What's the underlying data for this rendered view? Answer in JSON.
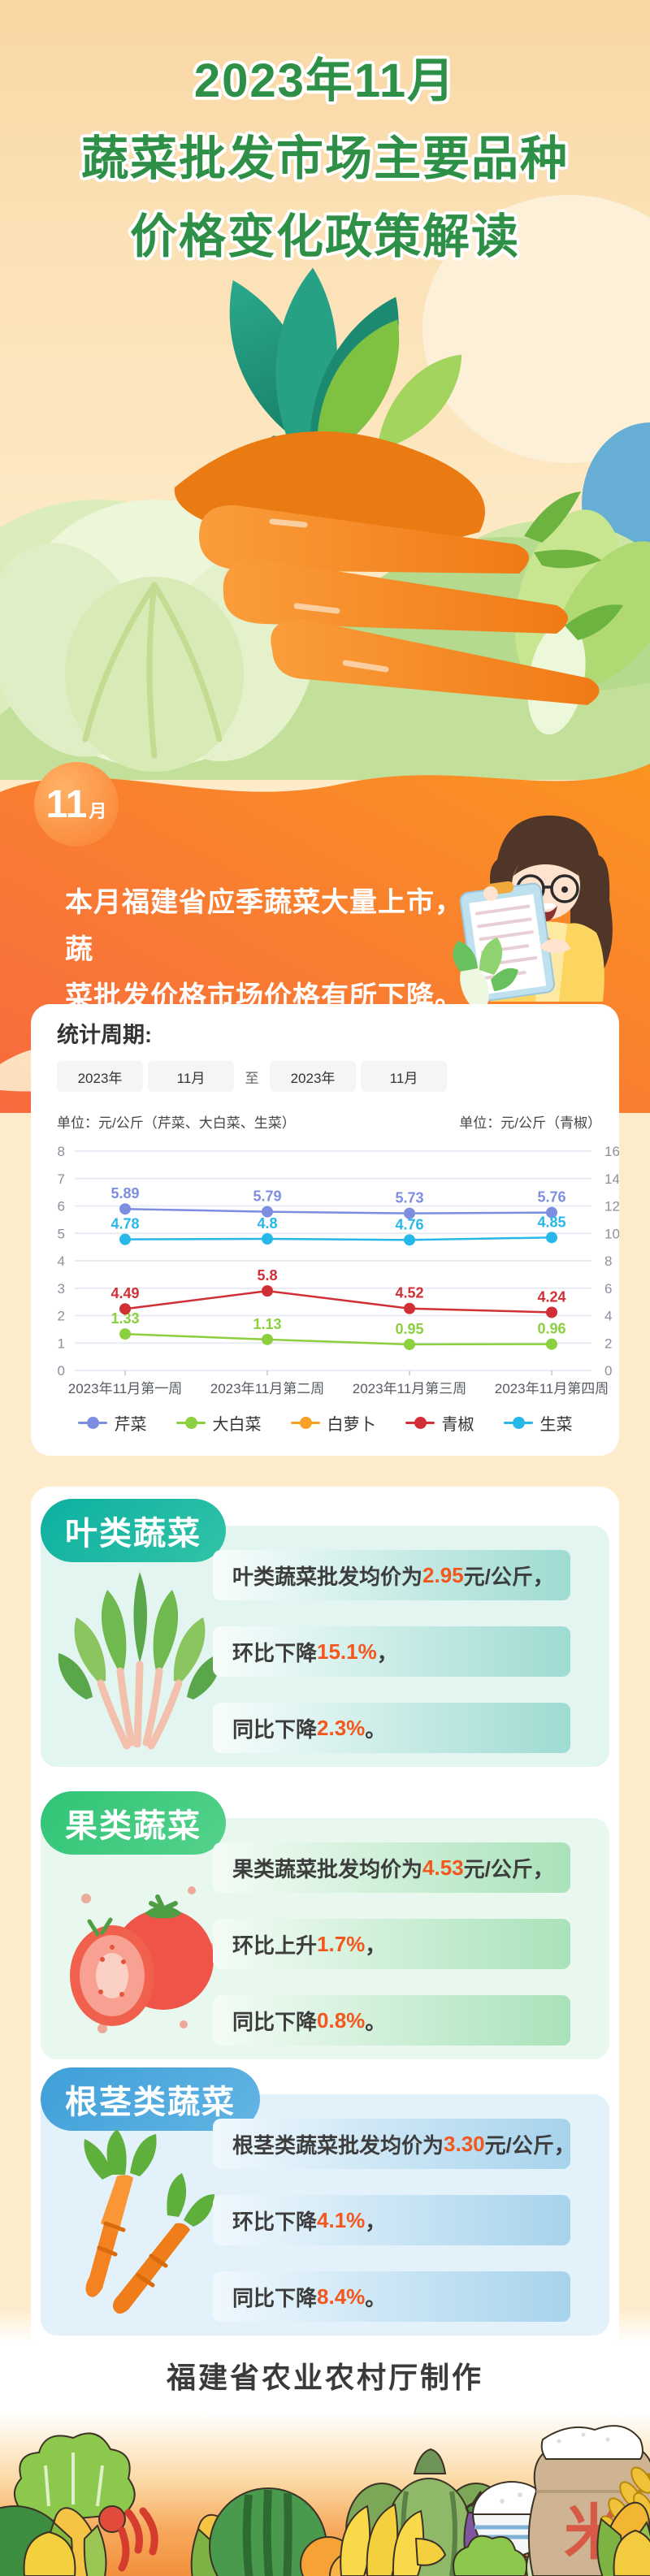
{
  "header": {
    "title_lines": [
      "2023年11月",
      "蔬菜批发市场主要品种",
      "价格变化政策解读"
    ]
  },
  "intro": {
    "badge": {
      "number": "11",
      "unit": "月"
    },
    "lines": [
      "本月福建省应季蔬菜大量上市，蔬",
      "菜批发价格市场价格有所下降。"
    ]
  },
  "stat_card": {
    "title": "统计周期:",
    "period_items": [
      {
        "box": true,
        "label": "2023年"
      },
      {
        "box": true,
        "label": "11月"
      },
      {
        "box": false,
        "label": "至"
      },
      {
        "box": true,
        "label": "2023年"
      },
      {
        "box": true,
        "label": "11月"
      }
    ],
    "unit_left": "单位：元/公斤（芹菜、大白菜、生菜）",
    "unit_right": "单位：元/公斤（青椒）"
  },
  "chart_data": {
    "type": "line",
    "categories": [
      "2023年11月第一周",
      "2023年11月第二周",
      "2023年11月第三周",
      "2023年11月第四周"
    ],
    "series": [
      {
        "name": "芹菜",
        "color": "#7d8ee1",
        "axis": "left",
        "values": [
          5.89,
          5.79,
          5.73,
          5.76
        ]
      },
      {
        "name": "大白菜",
        "color": "#8ccf3f",
        "axis": "left",
        "values": [
          1.33,
          1.13,
          0.95,
          0.96
        ]
      },
      {
        "name": "白萝卜",
        "color": "#f7a127",
        "axis": "left",
        "values": []
      },
      {
        "name": "青椒",
        "color": "#d02f35",
        "axis": "right",
        "values": [
          4.49,
          5.8,
          4.52,
          4.24
        ]
      },
      {
        "name": "生菜",
        "color": "#27b7e9",
        "axis": "left",
        "values": [
          4.78,
          4.8,
          4.76,
          4.85
        ]
      }
    ],
    "axes": {
      "left": {
        "min": 0,
        "max": 8,
        "step": 1
      },
      "right": {
        "min": 0,
        "max": 16,
        "step": 2
      }
    },
    "grid": true,
    "legend_position": "bottom"
  },
  "sections": [
    {
      "name": "叶类蔬菜",
      "badge_color_a": "#0db0a2",
      "badge_color_b": "#31c3a6",
      "panel_bg": "#e3f5f1",
      "bar_a": "#f7fdfc",
      "bar_b": "#9edbd2",
      "lines": [
        {
          "pre": "叶类蔬菜批发均价为",
          "em": "2.95",
          "post": "元/公斤，"
        },
        {
          "pre": "环比下降",
          "em": "15.1%",
          "post": "，"
        },
        {
          "pre": "同比下降",
          "em": "2.3%",
          "post": "。"
        }
      ]
    },
    {
      "name": "果类蔬菜",
      "badge_color_a": "#2fc476",
      "badge_color_b": "#55d28c",
      "panel_bg": "#e9f8ef",
      "bar_a": "#f3fcf5",
      "bar_b": "#a9e2ba",
      "lines": [
        {
          "pre": "果类蔬菜批发均价为",
          "em": "4.53",
          "post": "元/公斤，"
        },
        {
          "pre": "环比上升",
          "em": "1.7%",
          "post": "，"
        },
        {
          "pre": "同比下降",
          "em": "0.8%",
          "post": "。"
        }
      ]
    },
    {
      "name": "根茎类蔬菜",
      "badge_color_a": "#3f9fd8",
      "badge_color_b": "#63b5e4",
      "panel_bg": "#e2f1fa",
      "bar_a": "#eff8fd",
      "bar_b": "#a6d3ec",
      "lines": [
        {
          "pre": "根茎类蔬菜批发均价为",
          "em": "3.30",
          "post": "元/公斤，"
        },
        {
          "pre": "环比下降",
          "em": "4.1%",
          "post": "，"
        },
        {
          "pre": "同比下降",
          "em": "8.4%",
          "post": "。"
        }
      ]
    }
  ],
  "footer": {
    "credit": "福建省农业农村厅制作"
  },
  "bottom_border": {
    "sack_char": "米"
  },
  "colors": {
    "accent_highlight": "#f4571d",
    "title_green": "#2e9047",
    "band_a": "#f8693f",
    "band_b": "#fa9421"
  }
}
